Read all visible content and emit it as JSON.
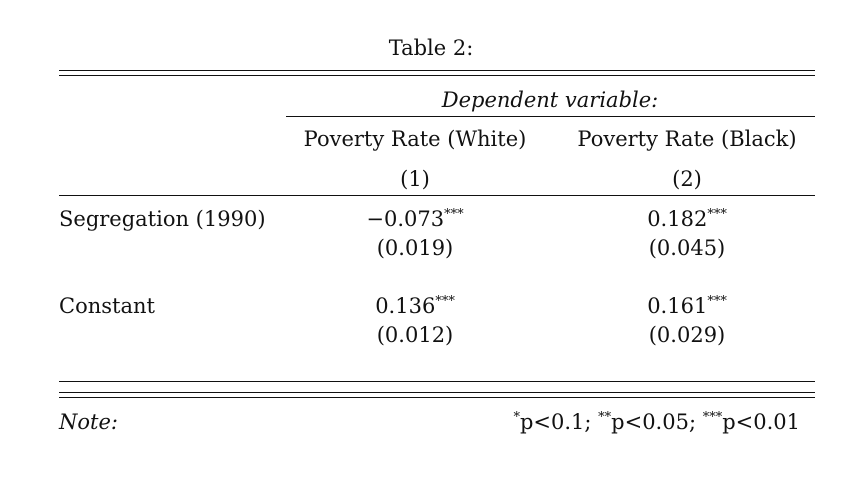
{
  "table": {
    "caption": "Table 2:",
    "dep_var_label": "Dependent variable:",
    "columns": [
      {
        "title": "Poverty Rate (White)",
        "number": "(1)"
      },
      {
        "title": "Poverty Rate (Black)",
        "number": "(2)"
      }
    ],
    "rows": [
      {
        "label": "Segregation (1990)",
        "cells": [
          {
            "coef": "−0.073",
            "stars": "***",
            "se": "(0.019)"
          },
          {
            "coef": "0.182",
            "stars": "***",
            "se": "(0.045)"
          }
        ]
      },
      {
        "label": "Constant",
        "cells": [
          {
            "coef": "0.136",
            "stars": "***",
            "se": "(0.012)"
          },
          {
            "coef": "0.161",
            "stars": "***",
            "se": "(0.029)"
          }
        ]
      }
    ],
    "note_label": "Note:",
    "note": {
      "s1": "*",
      "t1": "p<0.1; ",
      "s2": "**",
      "t2": "p<0.05; ",
      "s3": "***",
      "t3": "p<0.01"
    }
  }
}
